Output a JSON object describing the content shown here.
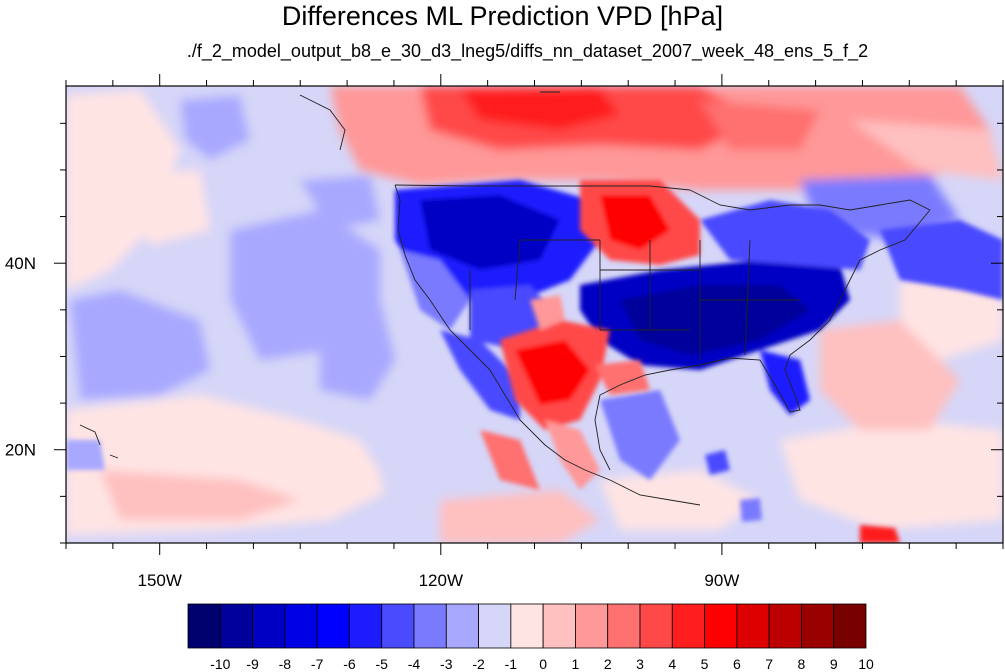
{
  "title": "Differences ML Prediction VPD [hPa]",
  "subtitle": "./f_2_model_output_b8_e_30_d3_lneg5/diffs_nn_dataset_2007_week_48_ens_5_f_2",
  "map": {
    "lon_range": [
      -160,
      -60
    ],
    "lat_range": [
      10,
      59
    ],
    "x_ticks": [
      {
        "value": -150,
        "label": "150W"
      },
      {
        "value": -120,
        "label": "120W"
      },
      {
        "value": -90,
        "label": "90W"
      }
    ],
    "y_ticks": [
      {
        "value": 40,
        "label": "40N"
      },
      {
        "value": 20,
        "label": "20N"
      }
    ]
  },
  "colorbar": {
    "labels": [
      "-10",
      "-9",
      "-8",
      "-7",
      "-6",
      "-5",
      "-4",
      "-3",
      "-2",
      "-1",
      "0",
      "1",
      "2",
      "3",
      "4",
      "5",
      "6",
      "7",
      "8",
      "9",
      "10"
    ],
    "colors": [
      "#00006e",
      "#00009a",
      "#0000c4",
      "#0000e6",
      "#0000ff",
      "#1c1cff",
      "#4a4aff",
      "#7a7aff",
      "#a8a8ff",
      "#d6d6f8",
      "#ffe4e4",
      "#ffc0c0",
      "#ff9898",
      "#ff7070",
      "#ff4848",
      "#ff1e1e",
      "#ff0000",
      "#de0000",
      "#bc0000",
      "#9a0000",
      "#780000"
    ]
  }
}
